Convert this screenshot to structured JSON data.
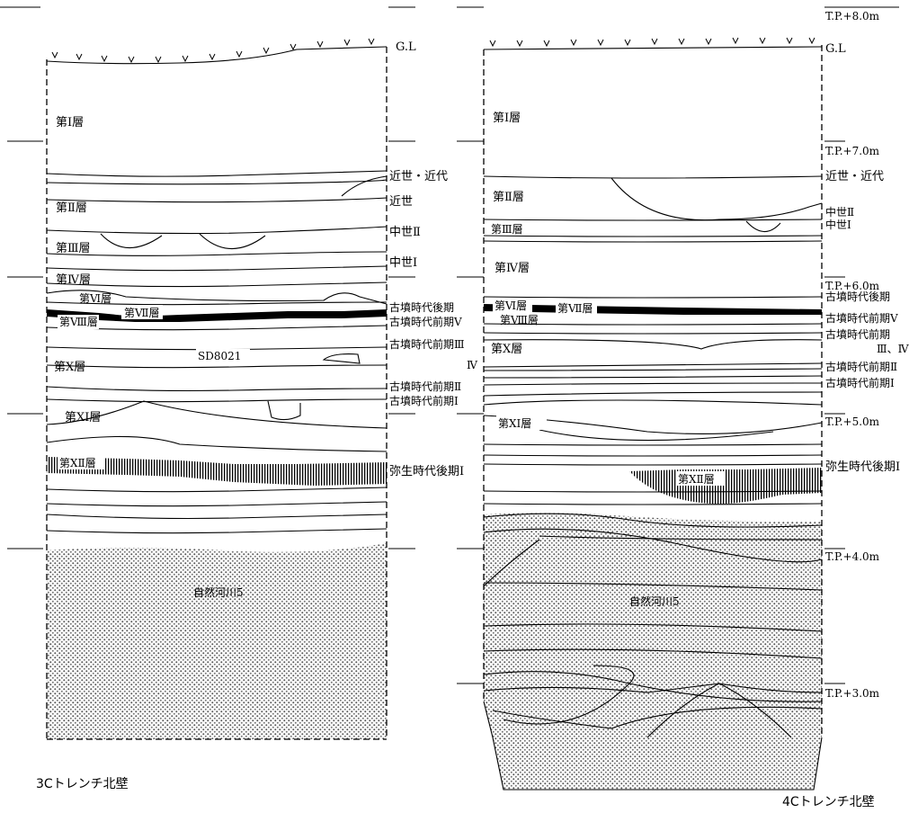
{
  "elevation_marks": {
    "m8": "T.P.+8.0m",
    "m7": "T.P.+7.0m",
    "m6": "T.P.+6.0m",
    "m5": "T.P.+5.0m",
    "m4": "T.P.+4.0m",
    "m3": "T.P.+3.0m"
  },
  "section_3c": {
    "caption": "3Cトレンチ北壁",
    "gl": "G.L",
    "layers": {
      "l1": "第Ⅰ層",
      "l2": "第Ⅱ層",
      "l3": "第Ⅲ層",
      "l4": "第Ⅳ層",
      "l6": "第Ⅵ層",
      "l7": "第Ⅶ層",
      "l8": "第Ⅷ層",
      "l10": "第Ⅹ層",
      "l11": "第ⅩⅠ層",
      "l12": "第ⅩⅡ層"
    },
    "feature": "SD8021",
    "river": "自然河川5",
    "periods": {
      "p1": "近世・近代",
      "p2": "近世",
      "p3": "中世Ⅱ",
      "p4": "中世Ⅰ",
      "p5": "古墳時代後期",
      "p6": "古墳時代前期Ⅴ",
      "p7": "古墳時代前期Ⅲ",
      "p8": "Ⅳ",
      "p9": "古墳時代前期Ⅱ",
      "p10": "古墳時代前期Ⅰ",
      "p11": "弥生時代後期Ⅰ"
    }
  },
  "section_4c": {
    "caption": "4Cトレンチ北壁",
    "gl": "G.L",
    "layers": {
      "l1": "第Ⅰ層",
      "l2": "第Ⅱ層",
      "l3": "第Ⅲ層",
      "l4": "第Ⅳ層",
      "l6": "第Ⅵ層",
      "l7": "第Ⅶ層",
      "l8": "第Ⅷ層",
      "l10": "第Ⅹ層",
      "l11": "第ⅩⅠ層",
      "l12": "第ⅩⅡ層"
    },
    "river": "自然河川5",
    "periods": {
      "p1": "近世・近代",
      "p2": "中世Ⅱ",
      "p3": "中世Ⅰ",
      "p4": "古墳時代後期",
      "p5": "古墳時代前期Ⅴ",
      "p6": "古墳時代前期",
      "p7": "Ⅲ、Ⅳ",
      "p8": "古墳時代前期Ⅱ",
      "p9": "古墳時代前期Ⅰ",
      "p10": "弥生時代後期Ⅰ"
    }
  }
}
